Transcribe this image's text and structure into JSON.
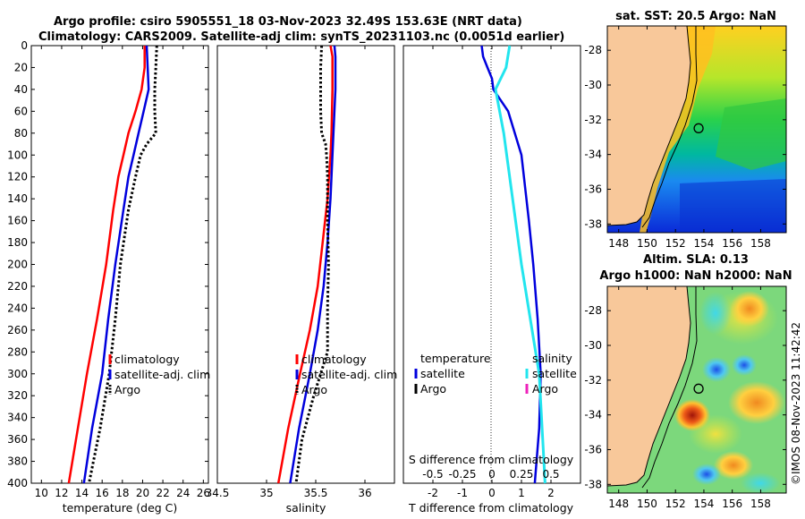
{
  "header": {
    "title_line1": "Argo profile: csiro 5905551_18 03-Nov-2023 32.49S 153.63E (NRT data)",
    "title_line2": "Climatology: CARS2009. Satellite-adj clim: synTS_20231103.nc (0.0051d earlier)"
  },
  "colors": {
    "climatology": "#ff0000",
    "satellite": "#0000dd",
    "argo": "#000000",
    "t_satellite": "#0000dd",
    "s_satellite": "#22e5ee",
    "s_argo": "#ee22bb",
    "land": "#f8c89a"
  },
  "chart_data": [
    {
      "type": "line",
      "panel": "temperature",
      "xlabel": "temperature (deg C)",
      "xlim": [
        9,
        26.5
      ],
      "xticks": [
        10,
        12,
        14,
        16,
        18,
        20,
        22,
        24,
        26
      ],
      "ylim": [
        0,
        400
      ],
      "yticks": [
        0,
        20,
        40,
        60,
        80,
        100,
        120,
        140,
        160,
        180,
        200,
        220,
        240,
        260,
        280,
        300,
        320,
        340,
        360,
        380,
        400
      ],
      "series": [
        {
          "name": "climatology",
          "depth": [
            0,
            20,
            40,
            60,
            80,
            100,
            120,
            150,
            200,
            250,
            300,
            350,
            400
          ],
          "values": [
            20.2,
            20.2,
            19.9,
            19.3,
            18.6,
            18.1,
            17.6,
            17.1,
            16.4,
            15.5,
            14.5,
            13.6,
            12.7
          ]
        },
        {
          "name": "satellite-adj. clim",
          "depth": [
            0,
            20,
            40,
            60,
            80,
            100,
            120,
            150,
            200,
            250,
            300,
            350,
            400
          ],
          "values": [
            20.4,
            20.5,
            20.6,
            20.1,
            19.6,
            19.1,
            18.6,
            18.1,
            17.3,
            16.6,
            16.0,
            15.0,
            14.2
          ]
        },
        {
          "name": "Argo",
          "depth": [
            0,
            20,
            40,
            60,
            80,
            90,
            100,
            120,
            150,
            200,
            250,
            300,
            350,
            400
          ],
          "values": [
            21.4,
            21.3,
            21.2,
            21.2,
            21.3,
            20.4,
            19.8,
            19.3,
            18.6,
            17.8,
            17.3,
            16.7,
            15.8,
            14.7
          ]
        }
      ],
      "legend": [
        "climatology",
        "satellite-adj. clim",
        "Argo"
      ],
      "legend_position": "bottom-right"
    },
    {
      "type": "line",
      "panel": "salinity",
      "xlabel": "salinity",
      "xlim": [
        34.5,
        36.3
      ],
      "xticks": [
        34.5,
        35,
        35.5,
        36
      ],
      "ylim": [
        0,
        400
      ],
      "series": [
        {
          "name": "climatology",
          "depth": [
            0,
            10,
            40,
            80,
            100,
            140,
            180,
            220,
            260,
            300,
            350,
            400
          ],
          "values": [
            35.65,
            35.67,
            35.67,
            35.66,
            35.65,
            35.62,
            35.57,
            35.52,
            35.44,
            35.34,
            35.22,
            35.12
          ]
        },
        {
          "name": "satellite-adj. clim",
          "depth": [
            0,
            10,
            40,
            80,
            100,
            140,
            180,
            220,
            260,
            300,
            350,
            400
          ],
          "values": [
            35.69,
            35.7,
            35.7,
            35.68,
            35.67,
            35.65,
            35.62,
            35.58,
            35.52,
            35.44,
            35.33,
            35.24
          ]
        },
        {
          "name": "Argo",
          "depth": [
            0,
            20,
            40,
            60,
            80,
            90,
            100,
            120,
            160,
            200,
            240,
            280,
            320,
            360,
            400
          ],
          "values": [
            35.56,
            35.55,
            35.55,
            35.55,
            35.56,
            35.6,
            35.61,
            35.62,
            35.62,
            35.63,
            35.62,
            35.62,
            35.48,
            35.36,
            35.3
          ]
        }
      ],
      "legend": [
        "climatology",
        "satellite-adj. clim",
        "Argo"
      ],
      "legend_position": "bottom-right"
    },
    {
      "type": "line",
      "panel": "difference",
      "xlabel": "T difference from climatology",
      "xlim": [
        -3,
        3
      ],
      "xticks": [
        -2,
        -1,
        0,
        1,
        2
      ],
      "top_axis_label": "S difference from climatology",
      "top_ticks": [
        "-0.5",
        "-0.25",
        "0",
        "0.25",
        "0.5"
      ],
      "ylim": [
        0,
        400
      ],
      "series": [
        {
          "name": "T satellite",
          "depth": [
            0,
            10,
            20,
            30,
            40,
            60,
            100,
            160,
            200,
            250,
            300,
            350,
            400
          ],
          "values": [
            -0.35,
            -0.3,
            -0.15,
            0.0,
            0.05,
            0.55,
            1.0,
            1.25,
            1.4,
            1.55,
            1.65,
            1.6,
            1.45
          ]
        },
        {
          "name": "S satellite",
          "depth": [
            0,
            20,
            40,
            80,
            200,
            300,
            400
          ],
          "values": [
            0.15,
            0.12,
            0.03,
            0.1,
            0.25,
            0.4,
            0.45
          ]
        }
      ],
      "legend": {
        "temperature_header": "temperature",
        "salinity_header": "salinity",
        "t_items": [
          "satellite",
          "Argo"
        ],
        "s_items": [
          "satellite",
          "Argo"
        ]
      },
      "legend_position": "bottom"
    },
    {
      "type": "heatmap",
      "panel": "map-sst",
      "title": "sat. SST: 20.5 Argo: NaN",
      "xticks": [
        148,
        150,
        152,
        154,
        156,
        158
      ],
      "yticks": [
        -28,
        -30,
        -32,
        -34,
        -36,
        -38
      ],
      "xlim": [
        147.2,
        159.8
      ],
      "ylim": [
        -38.5,
        -26.6
      ],
      "marker": {
        "lon": 153.63,
        "lat": -32.49
      }
    },
    {
      "type": "heatmap",
      "panel": "map-sla",
      "title_line1": "Altim. SLA: 0.13",
      "title_line2": "Argo h1000: NaN h2000: NaN",
      "xticks": [
        148,
        150,
        152,
        154,
        156,
        158
      ],
      "yticks": [
        -28,
        -30,
        -32,
        -34,
        -36,
        -38
      ],
      "xlim": [
        147.2,
        159.8
      ],
      "ylim": [
        -38.5,
        -26.6
      ],
      "marker": {
        "lon": 153.63,
        "lat": -32.49
      }
    }
  ],
  "watermark": "©IMOS 08-Nov-2023 11:42:42"
}
